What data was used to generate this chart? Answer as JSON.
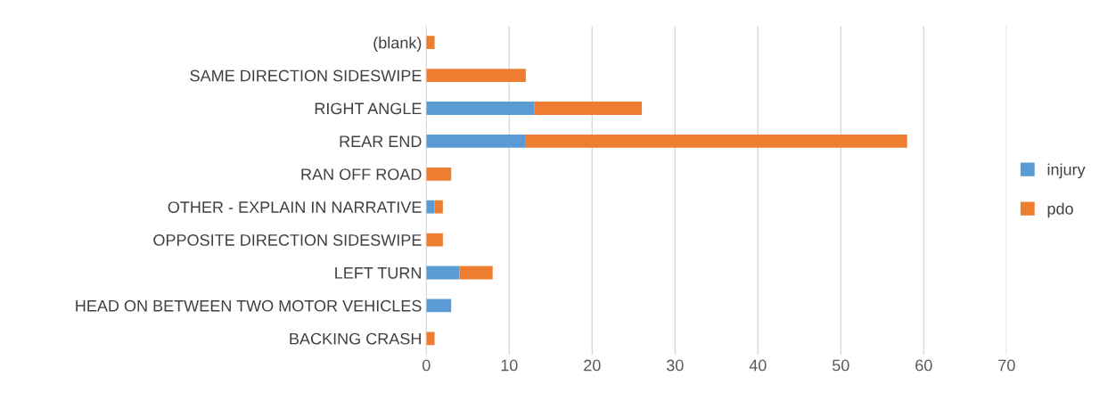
{
  "chart_data": {
    "type": "bar",
    "orientation": "horizontal",
    "stacked": true,
    "categories": [
      "(blank)",
      "SAME DIRECTION SIDESWIPE",
      "RIGHT ANGLE",
      "REAR END",
      "RAN OFF ROAD",
      "OTHER - EXPLAIN IN NARRATIVE",
      "OPPOSITE DIRECTION SIDESWIPE",
      "LEFT TURN",
      "HEAD ON BETWEEN TWO MOTOR VEHICLES",
      "BACKING CRASH"
    ],
    "series": [
      {
        "name": "injury",
        "color": "#5b9bd5",
        "values": [
          0,
          0,
          13,
          12,
          0,
          1,
          0,
          4,
          3,
          0
        ]
      },
      {
        "name": "pdo",
        "color": "#ed7d31",
        "values": [
          1,
          12,
          13,
          46,
          3,
          1,
          2,
          4,
          0,
          1
        ]
      }
    ],
    "xlim": [
      0,
      70
    ],
    "xticks": [
      0,
      10,
      20,
      30,
      40,
      50,
      60,
      70
    ],
    "grid": "x",
    "legend": "right"
  }
}
